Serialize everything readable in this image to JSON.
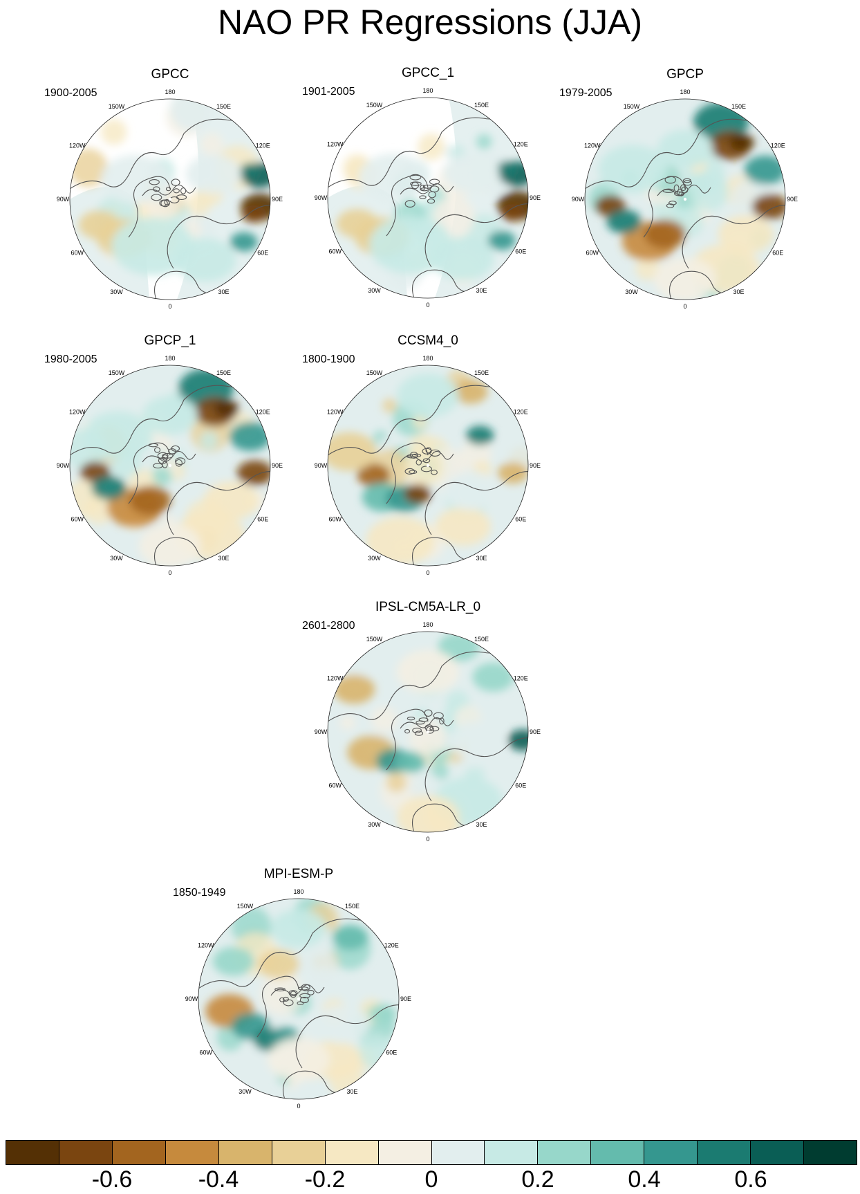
{
  "title": "NAO PR Regressions (JJA)",
  "panels": [
    {
      "id": "gpcc",
      "title": "GPCC",
      "period": "1900-2005",
      "fill": "partial"
    },
    {
      "id": "gpcc1",
      "title": "GPCC_1",
      "period": "1901-2005",
      "fill": "partial"
    },
    {
      "id": "gpcp",
      "title": "GPCP",
      "period": "1979-2005",
      "fill": "full"
    },
    {
      "id": "gpcp1",
      "title": "GPCP_1",
      "period": "1980-2005",
      "fill": "full"
    },
    {
      "id": "ccsm4",
      "title": "CCSM4_0",
      "period": "1800-1900",
      "fill": "full"
    },
    {
      "id": "ipsl",
      "title": "IPSL-CM5A-LR_0",
      "period": "2601-2800",
      "fill": "full"
    },
    {
      "id": "mpi",
      "title": "MPI-ESM-P",
      "period": "1850-1949",
      "fill": "full"
    }
  ],
  "lon_labels": [
    "180",
    "150E",
    "120E",
    "90E",
    "60E",
    "30E",
    "0",
    "30W",
    "60W",
    "90W",
    "120W",
    "150W"
  ],
  "colorbar": {
    "colors": [
      "#543005",
      "#7a4510",
      "#a3651f",
      "#c68a3d",
      "#d8b46c",
      "#e8d097",
      "#f6e8c3",
      "#f4efe3",
      "#e2eeee",
      "#c7eae5",
      "#97d7ca",
      "#64bbad",
      "#35978f",
      "#1b7b71",
      "#0a5e55",
      "#003c30"
    ],
    "labels": [
      "-0.6",
      "-0.4",
      "-0.2",
      "0",
      "0.2",
      "0.4",
      "0.6"
    ],
    "label_values": [
      -0.6,
      -0.4,
      -0.2,
      0,
      0.2,
      0.4,
      0.6
    ],
    "min": -0.8,
    "max": 0.8
  }
}
